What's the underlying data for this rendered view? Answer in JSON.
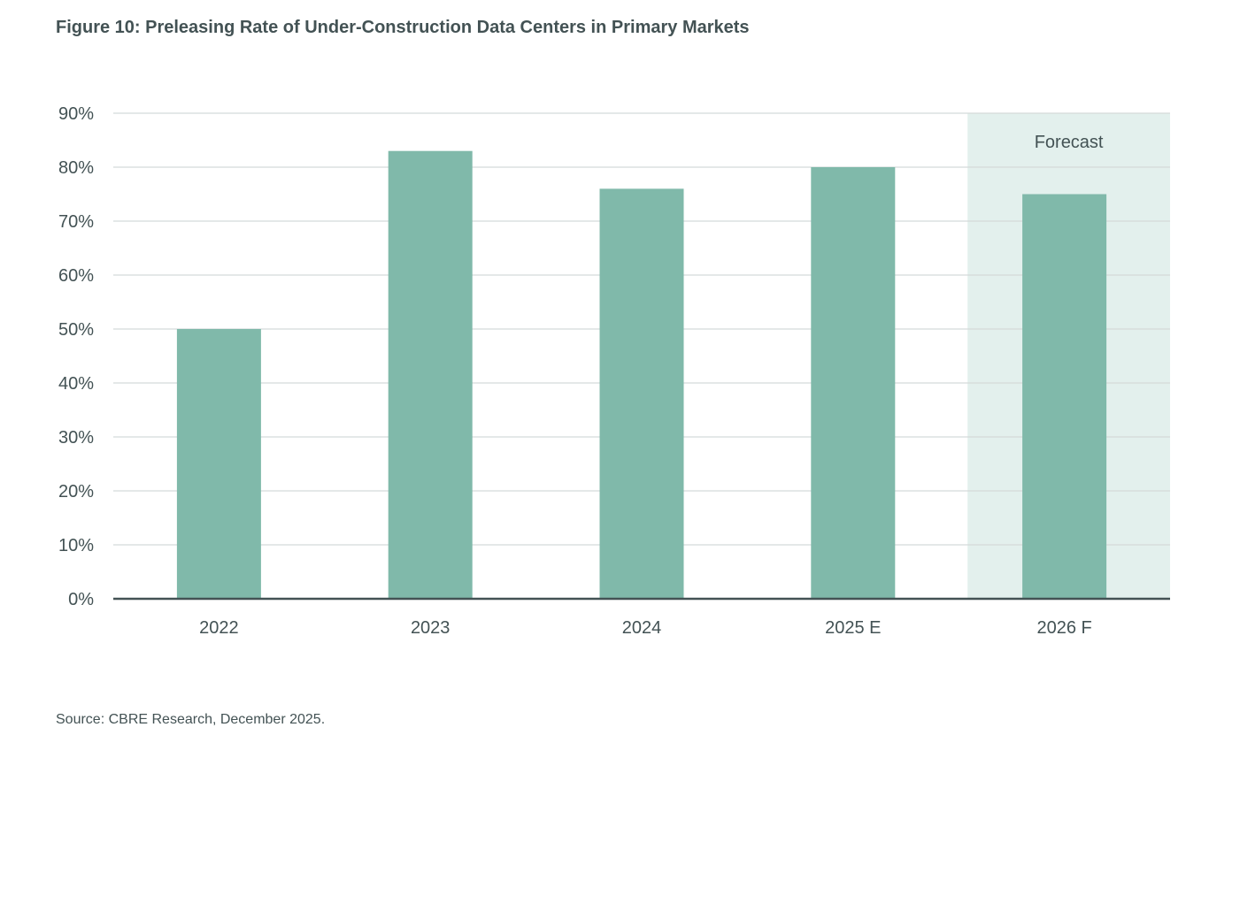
{
  "figure": {
    "title": "Figure 10: Preleasing Rate of Under-Construction Data Centers in Primary Markets",
    "source": "Source: CBRE Research, December 2025."
  },
  "chart_data": {
    "type": "bar",
    "title": "Figure 10: Preleasing Rate of Under-Construction Data Centers in Primary Markets",
    "xlabel": "",
    "ylabel": "",
    "categories": [
      "2022",
      "2023",
      "2024",
      "2025 E",
      "2026 F"
    ],
    "values": [
      50,
      83,
      76,
      80,
      75
    ],
    "ylim": [
      0,
      90
    ],
    "yticks": [
      0,
      10,
      20,
      30,
      40,
      50,
      60,
      70,
      80,
      90
    ],
    "ytick_labels": [
      "0%",
      "10%",
      "20%",
      "30%",
      "40%",
      "50%",
      "60%",
      "70%",
      "80%",
      "90%"
    ],
    "grid": true,
    "legend": "none",
    "forecast_band": {
      "label": "Forecast",
      "category": "2026 F"
    },
    "colors": {
      "bar": "#80b9aa",
      "forecast_band": "#e3f0ed",
      "gridline": "#d4d9d9",
      "axis": "#435254",
      "text": "#435254"
    }
  }
}
